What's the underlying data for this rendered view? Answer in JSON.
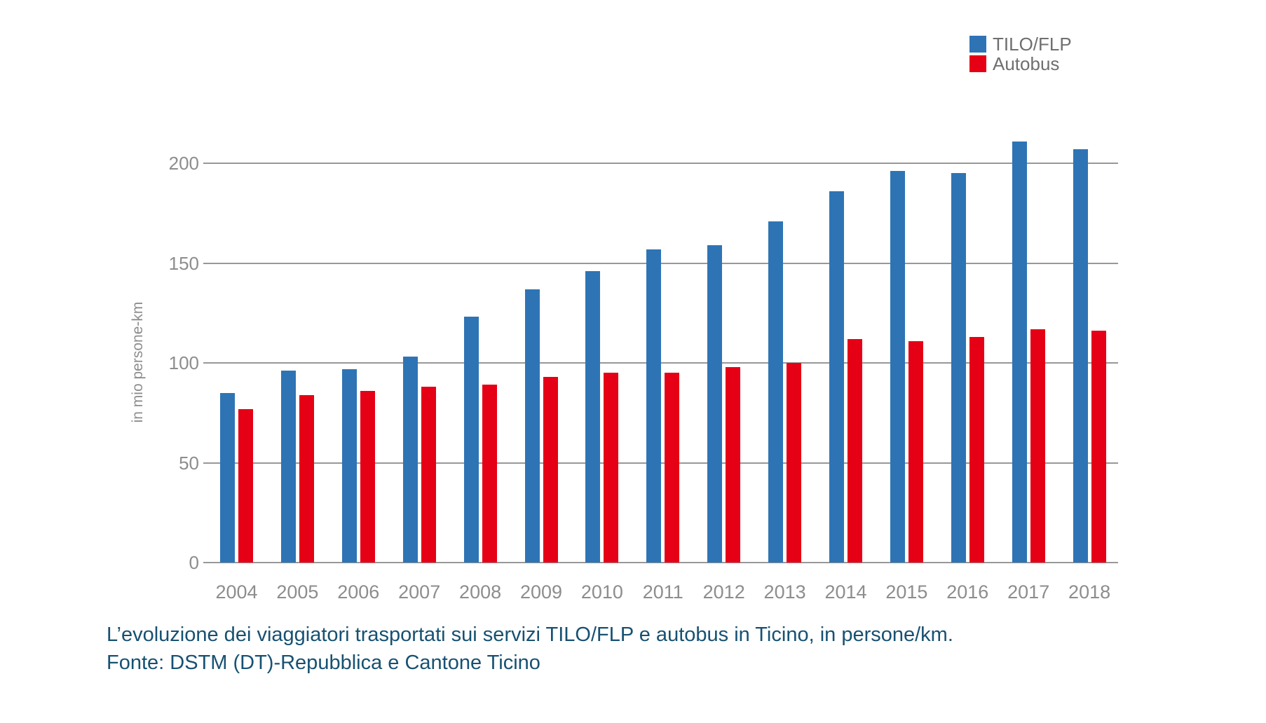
{
  "chart_data": {
    "type": "bar",
    "title": "",
    "categories": [
      "2004",
      "2005",
      "2006",
      "2007",
      "2008",
      "2009",
      "2010",
      "2011",
      "2012",
      "2013",
      "2014",
      "2015",
      "2016",
      "2017",
      "2018"
    ],
    "series": [
      {
        "name": "TILO/FLP",
        "color": "#2e74b5",
        "values": [
          85,
          96,
          97,
          103,
          123,
          137,
          146,
          157,
          159,
          171,
          186,
          196,
          195,
          211,
          207
        ]
      },
      {
        "name": "Autobus",
        "color": "#e60015",
        "values": [
          77,
          84,
          86,
          88,
          89,
          93,
          95,
          95,
          98,
          100,
          112,
          111,
          113,
          117,
          116
        ]
      }
    ],
    "xlabel": "",
    "ylabel": "in mio persone-km",
    "ylim": [
      0,
      200
    ],
    "yticks": [
      0,
      50,
      100,
      150,
      200
    ],
    "grid": true,
    "legend_position": "top-right"
  },
  "caption": {
    "line1": "L’evoluzione dei viaggiatori trasportati sui servizi TILO/FLP e autobus in Ticino, in persone/km.",
    "line2": "Fonte: DSTM (DT)-Repubblica e Cantone Ticino"
  }
}
